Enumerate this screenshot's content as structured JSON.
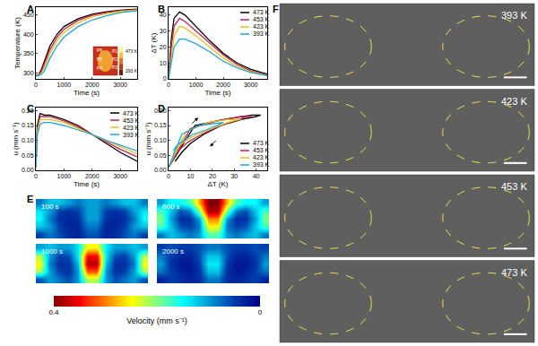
{
  "chart_data": [
    {
      "panel": "A",
      "type": "line",
      "xlabel": "Time (s)",
      "ylabel": "Temperature (K)",
      "xlim": [
        0,
        3600
      ],
      "xticks": [
        0,
        1000,
        2000,
        3000
      ],
      "ylim": [
        285,
        470
      ],
      "yticks": [
        300,
        350,
        400,
        450
      ],
      "grid": false,
      "x": [
        0,
        100,
        200,
        300,
        500,
        750,
        1000,
        1500,
        2000,
        2500,
        3000,
        3600
      ],
      "series": [
        {
          "color": "#000000",
          "values": [
            293,
            296,
            310,
            330,
            370,
            400,
            420,
            440,
            452,
            458,
            462,
            465
          ]
        },
        {
          "color": "#c81e50",
          "values": [
            293,
            295,
            305,
            322,
            360,
            392,
            413,
            436,
            449,
            456,
            461,
            464
          ]
        },
        {
          "color": "#e8c21a",
          "values": [
            293,
            294,
            300,
            313,
            350,
            383,
            405,
            430,
            445,
            453,
            459,
            463
          ]
        },
        {
          "color": "#1aa7e0",
          "values": [
            293,
            293,
            297,
            305,
            338,
            370,
            393,
            420,
            437,
            448,
            456,
            461
          ]
        }
      ],
      "inset": {
        "points": [
          "P1",
          "P2",
          "P3",
          "P4",
          "P5",
          "P6"
        ],
        "colorbar_labels": [
          "473 K",
          "293 K"
        ]
      }
    },
    {
      "panel": "B",
      "type": "line",
      "xlabel": "Time (s)",
      "ylabel": "ΔT (K)",
      "xlim": [
        0,
        3600
      ],
      "xticks": [
        0,
        1000,
        2000,
        3000
      ],
      "ylim": [
        0,
        45
      ],
      "yticks": [
        0,
        10,
        20,
        30,
        40
      ],
      "grid": false,
      "legend": "upper right",
      "x": [
        0,
        100,
        200,
        400,
        600,
        1000,
        1500,
        2000,
        2500,
        3000,
        3600
      ],
      "series": [
        {
          "name": "473 K",
          "color": "#000000",
          "values": [
            0,
            25,
            38,
            42,
            40,
            33,
            24,
            16,
            10,
            6,
            3
          ]
        },
        {
          "name": "453 K",
          "color": "#c81e50",
          "values": [
            0,
            20,
            33,
            38,
            36,
            30,
            22,
            15,
            9,
            5,
            2.5
          ]
        },
        {
          "name": "423 K",
          "color": "#e8c21a",
          "values": [
            0,
            15,
            27,
            33,
            32,
            27,
            20,
            13,
            8,
            4.5,
            2
          ]
        },
        {
          "name": "393 K",
          "color": "#1aa7e0",
          "values": [
            0,
            10,
            20,
            25,
            25,
            22,
            17,
            11,
            7,
            4,
            2
          ]
        }
      ]
    },
    {
      "panel": "C",
      "type": "line",
      "xlabel": "Time (s)",
      "ylabel": "u (mm s⁻¹)",
      "xlim": [
        0,
        3600
      ],
      "xticks": [
        0,
        1000,
        2000,
        3000
      ],
      "ylim": [
        0,
        0.21
      ],
      "yticks": [
        {
          "value": 0,
          "label": "0.00"
        },
        {
          "value": 0.05,
          "label": "0.05"
        },
        {
          "value": 0.1,
          "label": "0.10"
        },
        {
          "value": 0.15,
          "label": "0.15"
        },
        {
          "value": 0.2,
          "label": "0.20"
        }
      ],
      "grid": false,
      "legend": "upper right",
      "x": [
        0,
        50,
        150,
        300,
        500,
        1000,
        1500,
        2000,
        2500,
        3000,
        3600
      ],
      "series": [
        {
          "name": "473 K",
          "color": "#000000",
          "values": [
            0.01,
            0.15,
            0.19,
            0.185,
            0.185,
            0.17,
            0.15,
            0.12,
            0.09,
            0.06,
            0.03
          ]
        },
        {
          "name": "453 K",
          "color": "#c81e50",
          "values": [
            0.01,
            0.14,
            0.18,
            0.18,
            0.18,
            0.165,
            0.145,
            0.12,
            0.095,
            0.07,
            0.045
          ]
        },
        {
          "name": "423 K",
          "color": "#e8c21a",
          "values": [
            0.01,
            0.13,
            0.17,
            0.17,
            0.17,
            0.16,
            0.14,
            0.12,
            0.1,
            0.08,
            0.055
          ]
        },
        {
          "name": "393 K",
          "color": "#1aa7e0",
          "values": [
            0.01,
            0.12,
            0.155,
            0.16,
            0.16,
            0.15,
            0.135,
            0.12,
            0.1,
            0.085,
            0.065
          ]
        }
      ]
    },
    {
      "panel": "D",
      "type": "line",
      "xlabel": "ΔT (K)",
      "ylabel": "u (mm s⁻¹)",
      "xlim": [
        0,
        45
      ],
      "xticks": [
        0,
        10,
        20,
        30,
        40
      ],
      "ylim": [
        0,
        0.21
      ],
      "yticks": [
        {
          "value": 0,
          "label": "0.00"
        },
        {
          "value": 0.05,
          "label": "0.05"
        },
        {
          "value": 0.1,
          "label": "0.10"
        },
        {
          "value": 0.15,
          "label": "0.15"
        },
        {
          "value": 0.2,
          "label": "0.20"
        }
      ],
      "grid": false,
      "legend": "lower right",
      "series": [
        {
          "name": "473 K",
          "color": "#000000",
          "x": [
            0,
            12,
            25,
            38,
            42,
            40,
            33,
            24,
            16,
            10,
            6,
            3
          ],
          "values": [
            0.01,
            0.15,
            0.17,
            0.185,
            0.185,
            0.18,
            0.17,
            0.15,
            0.12,
            0.09,
            0.06,
            0.03
          ]
        },
        {
          "name": "453 K",
          "color": "#c81e50",
          "x": [
            0,
            10,
            22,
            33,
            38,
            36,
            30,
            22,
            15,
            9,
            5,
            2.5
          ],
          "values": [
            0.01,
            0.14,
            0.165,
            0.18,
            0.18,
            0.18,
            0.165,
            0.145,
            0.12,
            0.095,
            0.07,
            0.045
          ]
        },
        {
          "name": "423 K",
          "color": "#e8c21a",
          "x": [
            0,
            8,
            18,
            27,
            33,
            32,
            27,
            20,
            13,
            8,
            4.5,
            2
          ],
          "values": [
            0.01,
            0.13,
            0.16,
            0.17,
            0.17,
            0.17,
            0.16,
            0.14,
            0.12,
            0.1,
            0.08,
            0.055
          ]
        },
        {
          "name": "393 K",
          "color": "#1aa7e0",
          "x": [
            0,
            6,
            14,
            20,
            25,
            25,
            22,
            17,
            11,
            7,
            4,
            2
          ],
          "values": [
            0.01,
            0.12,
            0.15,
            0.155,
            0.16,
            0.16,
            0.15,
            0.135,
            0.12,
            0.1,
            0.085,
            0.065
          ]
        }
      ]
    },
    {
      "panel": "E",
      "type": "heatmap",
      "tick_labels": false,
      "colorbar_label": "Velocity (mm s⁻¹)",
      "colorbar_range": [
        0.4,
        0
      ],
      "colorbar_ticks": [
        0.4,
        0
      ],
      "panels": [
        {
          "label": "100 s",
          "cells": [
            [
              0.05,
              0.08,
              0.06,
              0.04,
              0.03,
              0.06,
              0.06,
              0.03,
              0.04,
              0.06,
              0.08,
              0.05
            ],
            [
              0.12,
              0.1,
              0.05,
              0.03,
              0.03,
              0.08,
              0.08,
              0.03,
              0.03,
              0.05,
              0.1,
              0.12
            ],
            [
              0.15,
              0.08,
              0.04,
              0.03,
              0.04,
              0.1,
              0.1,
              0.04,
              0.03,
              0.04,
              0.08,
              0.15
            ],
            [
              0.14,
              0.1,
              0.05,
              0.04,
              0.05,
              0.1,
              0.1,
              0.05,
              0.04,
              0.05,
              0.1,
              0.14
            ],
            [
              0.08,
              0.12,
              0.12,
              0.1,
              0.08,
              0.1,
              0.1,
              0.08,
              0.1,
              0.12,
              0.12,
              0.08
            ]
          ]
        },
        {
          "label": "600 s",
          "cells": [
            [
              0.08,
              0.12,
              0.1,
              0.08,
              0.1,
              0.18,
              0.18,
              0.1,
              0.08,
              0.1,
              0.12,
              0.08
            ],
            [
              0.18,
              0.12,
              0.06,
              0.05,
              0.08,
              0.25,
              0.25,
              0.08,
              0.05,
              0.06,
              0.12,
              0.18
            ],
            [
              0.2,
              0.1,
              0.04,
              0.04,
              0.1,
              0.3,
              0.3,
              0.1,
              0.04,
              0.04,
              0.1,
              0.2
            ],
            [
              0.18,
              0.12,
              0.06,
              0.08,
              0.2,
              0.38,
              0.38,
              0.2,
              0.08,
              0.06,
              0.12,
              0.18
            ],
            [
              0.1,
              0.15,
              0.15,
              0.18,
              0.28,
              0.4,
              0.4,
              0.28,
              0.18,
              0.15,
              0.15,
              0.1
            ]
          ]
        },
        {
          "label": "1000 s",
          "cells": [
            [
              0.06,
              0.1,
              0.08,
              0.06,
              0.1,
              0.22,
              0.22,
              0.1,
              0.06,
              0.08,
              0.1,
              0.06
            ],
            [
              0.22,
              0.1,
              0.05,
              0.04,
              0.1,
              0.32,
              0.32,
              0.1,
              0.04,
              0.05,
              0.1,
              0.22
            ],
            [
              0.25,
              0.08,
              0.04,
              0.04,
              0.12,
              0.38,
              0.38,
              0.12,
              0.04,
              0.04,
              0.08,
              0.25
            ],
            [
              0.22,
              0.1,
              0.05,
              0.06,
              0.14,
              0.35,
              0.35,
              0.14,
              0.06,
              0.05,
              0.1,
              0.22
            ],
            [
              0.1,
              0.12,
              0.1,
              0.1,
              0.14,
              0.25,
              0.25,
              0.14,
              0.1,
              0.1,
              0.12,
              0.1
            ]
          ]
        },
        {
          "label": "2000 s",
          "cells": [
            [
              0.03,
              0.05,
              0.04,
              0.03,
              0.04,
              0.08,
              0.08,
              0.04,
              0.03,
              0.04,
              0.05,
              0.03
            ],
            [
              0.08,
              0.05,
              0.03,
              0.02,
              0.04,
              0.12,
              0.12,
              0.04,
              0.02,
              0.03,
              0.05,
              0.08
            ],
            [
              0.1,
              0.04,
              0.02,
              0.02,
              0.05,
              0.14,
              0.14,
              0.05,
              0.02,
              0.02,
              0.04,
              0.1
            ],
            [
              0.08,
              0.05,
              0.03,
              0.03,
              0.06,
              0.12,
              0.12,
              0.06,
              0.03,
              0.03,
              0.05,
              0.08
            ],
            [
              0.05,
              0.06,
              0.05,
              0.05,
              0.06,
              0.08,
              0.08,
              0.06,
              0.05,
              0.05,
              0.06,
              0.05
            ]
          ]
        }
      ]
    },
    {
      "panel": "F",
      "type": "image",
      "panels": [
        {
          "label": "393 K"
        },
        {
          "label": "423 K"
        },
        {
          "label": "453 K"
        },
        {
          "label": "473 K"
        }
      ]
    }
  ]
}
